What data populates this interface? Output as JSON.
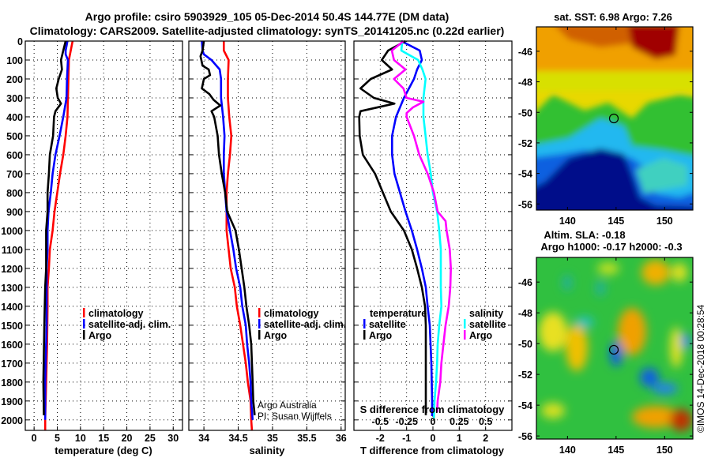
{
  "title": {
    "line1": "Argo profile: csiro 5903929_105 05-Dec-2014 50.4S 144.77E (DM data)",
    "line2": "Climatology: CARS2009. Satellite-adjusted climatology: synTS_20141205.nc (0.22d earlier)"
  },
  "colors": {
    "climatology": "#ff0000",
    "satellite": "#0000ff",
    "argo": "#000000",
    "sal_satellite": "#00ffff",
    "sal_argo": "#ff00ff"
  },
  "chart_data": [
    {
      "id": "temperature",
      "type": "line",
      "xlabel": "temperature (deg C)",
      "ylabel": "depth",
      "xlim": [
        -1.9,
        32
      ],
      "ylim": [
        2055,
        0
      ],
      "xticks": [
        0,
        5,
        10,
        15,
        20,
        25,
        30
      ],
      "yticks": [
        0,
        100,
        200,
        300,
        400,
        500,
        600,
        700,
        800,
        900,
        1000,
        1100,
        1200,
        1300,
        1400,
        1500,
        1600,
        1700,
        1800,
        1900,
        2000
      ],
      "grid": true,
      "legend": {
        "placement": "center-right",
        "items": [
          {
            "label": "climatology",
            "color": "#ff0000"
          },
          {
            "label": "satellite-adj. clim.",
            "color": "#0000ff"
          },
          {
            "label": "Argo",
            "color": "#000000"
          }
        ]
      },
      "series": [
        {
          "name": "climatology",
          "color": "#ff0000",
          "depth": [
            0,
            100,
            200,
            300,
            400,
            500,
            600,
            700,
            800,
            900,
            1000,
            1100,
            1200,
            1300,
            1400,
            1600,
            1800,
            1900,
            2000,
            2055
          ],
          "value": [
            8.3,
            7.5,
            7.4,
            7.3,
            7.2,
            6.8,
            6.3,
            5.6,
            5.0,
            4.4,
            4.0,
            3.4,
            3.2,
            2.9,
            2.9,
            2.8,
            2.6,
            2.5,
            2.4,
            2.4
          ]
        },
        {
          "name": "satellite-adj. clim.",
          "color": "#0000ff",
          "depth": [
            0,
            50,
            70,
            100,
            200,
            300,
            400,
            500,
            600,
            700,
            800,
            900,
            1000,
            1100,
            1200,
            1400,
            1500,
            1800,
            2000
          ],
          "value": [
            7.2,
            6.8,
            6.8,
            7.3,
            7.1,
            7.0,
            6.3,
            5.5,
            4.6,
            4.0,
            3.6,
            3.1,
            2.9,
            2.9,
            2.7,
            2.7,
            2.7,
            2.4,
            2.4
          ]
        },
        {
          "name": "Argo",
          "color": "#000000",
          "depth": [
            0,
            50,
            100,
            150,
            200,
            250,
            300,
            330,
            370,
            400,
            500,
            600,
            700,
            800,
            900,
            1000,
            1200,
            1300,
            1500,
            1800,
            1975
          ],
          "value": [
            6.8,
            6.3,
            5.8,
            6.0,
            5.3,
            4.8,
            5.1,
            5.8,
            4.6,
            4.3,
            4.1,
            3.4,
            3.2,
            2.9,
            2.9,
            2.6,
            2.6,
            2.4,
            2.2,
            2.0,
            2.1
          ]
        }
      ]
    },
    {
      "id": "salinity",
      "type": "line",
      "xlabel": "salinity",
      "xlim": [
        33.78,
        36.06
      ],
      "ylim": [
        2055,
        0
      ],
      "xticks": [
        34,
        34.5,
        35,
        35.5,
        36
      ],
      "grid": true,
      "legend": {
        "placement": "center-right",
        "items": [
          {
            "label": "climatology",
            "color": "#ff0000"
          },
          {
            "label": "satellite-adj. clim.",
            "color": "#0000ff"
          },
          {
            "label": "Argo",
            "color": "#000000"
          }
        ]
      },
      "annotation": {
        "line1": "Argo Australia",
        "line2": "PI: Susan Wijffels"
      },
      "series": [
        {
          "name": "climatology",
          "color": "#ff0000",
          "depth": [
            0,
            50,
            100,
            200,
            300,
            400,
            500,
            600,
            700,
            800,
            900,
            1000,
            1100,
            1200,
            1300,
            1400,
            1500,
            1600,
            1700,
            1800,
            1900,
            2000,
            2055
          ],
          "value": [
            34.29,
            34.29,
            34.36,
            34.35,
            34.35,
            34.37,
            34.4,
            34.38,
            34.35,
            34.33,
            34.33,
            34.33,
            34.36,
            34.39,
            34.45,
            34.48,
            34.53,
            34.57,
            34.61,
            34.64,
            34.68,
            34.69,
            34.7
          ]
        },
        {
          "name": "satellite-adj. clim.",
          "color": "#0000ff",
          "depth": [
            0,
            50,
            70,
            100,
            150,
            200,
            300,
            400,
            500,
            600,
            700,
            800,
            900,
            1000,
            1100,
            1200,
            1300,
            1400,
            1500,
            1600,
            1700,
            1800,
            1900,
            2000
          ],
          "value": [
            33.97,
            33.98,
            34.0,
            34.11,
            34.23,
            34.25,
            34.25,
            34.28,
            34.3,
            34.29,
            34.29,
            34.31,
            34.33,
            34.38,
            34.43,
            34.47,
            34.53,
            34.56,
            34.61,
            34.63,
            34.66,
            34.68,
            34.69,
            34.71
          ]
        },
        {
          "name": "Argo",
          "color": "#000000",
          "depth": [
            0,
            50,
            80,
            130,
            150,
            180,
            200,
            250,
            280,
            310,
            340,
            370,
            400,
            500,
            600,
            700,
            800,
            900,
            1000,
            1100,
            1200,
            1300,
            1400,
            1500,
            1600,
            1700,
            1800,
            1900,
            1975
          ],
          "value": [
            34.0,
            33.98,
            33.95,
            33.98,
            34.07,
            34.09,
            34.0,
            33.97,
            34.08,
            34.14,
            34.24,
            34.11,
            34.15,
            34.2,
            34.22,
            34.26,
            34.31,
            34.34,
            34.46,
            34.51,
            34.55,
            34.59,
            34.62,
            34.66,
            34.69,
            34.7,
            34.71,
            34.72,
            34.74
          ]
        }
      ]
    },
    {
      "id": "difference",
      "type": "line",
      "xlabel": "T difference from climatology",
      "xlim": [
        -3,
        3
      ],
      "ylim": [
        2055,
        0
      ],
      "xticks": [
        -2,
        -1,
        0,
        1,
        2
      ],
      "secondary_axis": {
        "label": "S difference from climatology",
        "ticks": [
          -0.5,
          -0.25,
          0,
          0.25,
          0.5
        ],
        "tick_labels": [
          "-0.5",
          "-0.25",
          "0",
          "0.25",
          "0.5"
        ],
        "scale_T_per_S": 4
      },
      "grid": true,
      "legend": {
        "temperature": {
          "title": "temperature",
          "items": [
            {
              "label": "satellite",
              "color": "#0000ff"
            },
            {
              "label": "Argo",
              "color": "#000000"
            }
          ]
        },
        "salinity": {
          "title": "salinity",
          "items": [
            {
              "label": "satellite",
              "color": "#00ffff"
            },
            {
              "label": "Argo",
              "color": "#ff00ff"
            }
          ]
        }
      },
      "series": [
        {
          "name": "T satellite",
          "color": "#0000ff",
          "axis": "T",
          "depth": [
            0,
            50,
            100,
            150,
            200,
            300,
            400,
            500,
            600,
            700,
            800,
            900,
            1000,
            1100,
            1200,
            1300,
            1400,
            1500,
            1700,
            1900,
            1980
          ],
          "value": [
            -1.2,
            -0.5,
            -0.42,
            -0.6,
            -0.72,
            -1.1,
            -1.4,
            -1.55,
            -1.55,
            -1.46,
            -1.25,
            -1.04,
            -0.8,
            -0.6,
            -0.42,
            -0.27,
            -0.2,
            -0.12,
            -0.06,
            -0.03,
            -0.03
          ]
        },
        {
          "name": "T Argo",
          "color": "#000000",
          "axis": "T",
          "depth": [
            0,
            50,
            100,
            150,
            200,
            250,
            300,
            330,
            370,
            400,
            500,
            600,
            700,
            800,
            900,
            1000,
            1100,
            1200,
            1300,
            1400,
            1500,
            1900,
            1975
          ],
          "value": [
            -1.04,
            -1.7,
            -1.94,
            -1.55,
            -2.36,
            -2.75,
            -2.24,
            -1.46,
            -2.75,
            -2.8,
            -2.78,
            -2.66,
            -2.2,
            -1.9,
            -1.6,
            -1.1,
            -0.8,
            -0.6,
            -0.42,
            -0.3,
            -0.27,
            -0.27,
            -0.27
          ]
        },
        {
          "name": "S satellite",
          "color": "#00ffff",
          "axis": "S",
          "depth": [
            0,
            50,
            100,
            150,
            200,
            300,
            400,
            500,
            600,
            700,
            800,
            900,
            1000,
            1100,
            1300,
            1400,
            1500,
            1600,
            1700,
            1800,
            1900,
            1990
          ],
          "value": [
            -0.29,
            -0.3,
            -0.14,
            -0.1,
            -0.07,
            -0.09,
            -0.09,
            -0.07,
            -0.05,
            -0.02,
            0.0,
            0.04,
            0.06,
            0.075,
            0.075,
            0.08,
            0.06,
            0.045,
            0.04,
            0.03,
            0.015,
            0.01
          ]
        },
        {
          "name": "S Argo",
          "color": "#ff00ff",
          "axis": "S",
          "depth": [
            0,
            50,
            100,
            150,
            200,
            250,
            300,
            320,
            350,
            380,
            400,
            500,
            600,
            700,
            800,
            900,
            950,
            1000,
            1100,
            1200,
            1300,
            1400,
            1500,
            1600,
            1700,
            1800,
            1900,
            1960
          ],
          "value": [
            -0.28,
            -0.39,
            -0.37,
            -0.26,
            -0.37,
            -0.28,
            -0.25,
            -0.09,
            -0.19,
            -0.25,
            -0.25,
            -0.18,
            -0.13,
            -0.05,
            0.01,
            0.045,
            0.12,
            0.13,
            0.16,
            0.17,
            0.165,
            0.15,
            0.12,
            0.1,
            0.08,
            0.07,
            0.045,
            0.04
          ]
        }
      ]
    }
  ],
  "maps": [
    {
      "id": "sst",
      "title": "sat. SST: 6.98 Argo: 7.26",
      "lon_ticks": [
        140,
        145,
        150
      ],
      "lat_ticks": [
        -46,
        -48,
        -50,
        -52,
        -54,
        -56
      ],
      "lon_range": [
        136.8,
        152.9
      ],
      "lat_range": [
        -44.4,
        -56.4
      ],
      "marker": {
        "lon": 144.77,
        "lat": -50.4
      }
    },
    {
      "id": "sla",
      "title_line1": "Altim. SLA: -0.18",
      "title_line2": "Argo h1000: -0.17 h2000: -0.3",
      "lon_ticks": [
        140,
        145,
        150
      ],
      "lat_ticks": [
        -46,
        -48,
        -50,
        -52,
        -54,
        -56
      ],
      "lon_range": [
        136.8,
        152.9
      ],
      "lat_range": [
        -44.4,
        -56.2
      ],
      "marker": {
        "lon": 144.77,
        "lat": -50.4
      }
    }
  ],
  "footer": {
    "credit": "©IMOS 14-Dec-2018 00:28:54"
  }
}
